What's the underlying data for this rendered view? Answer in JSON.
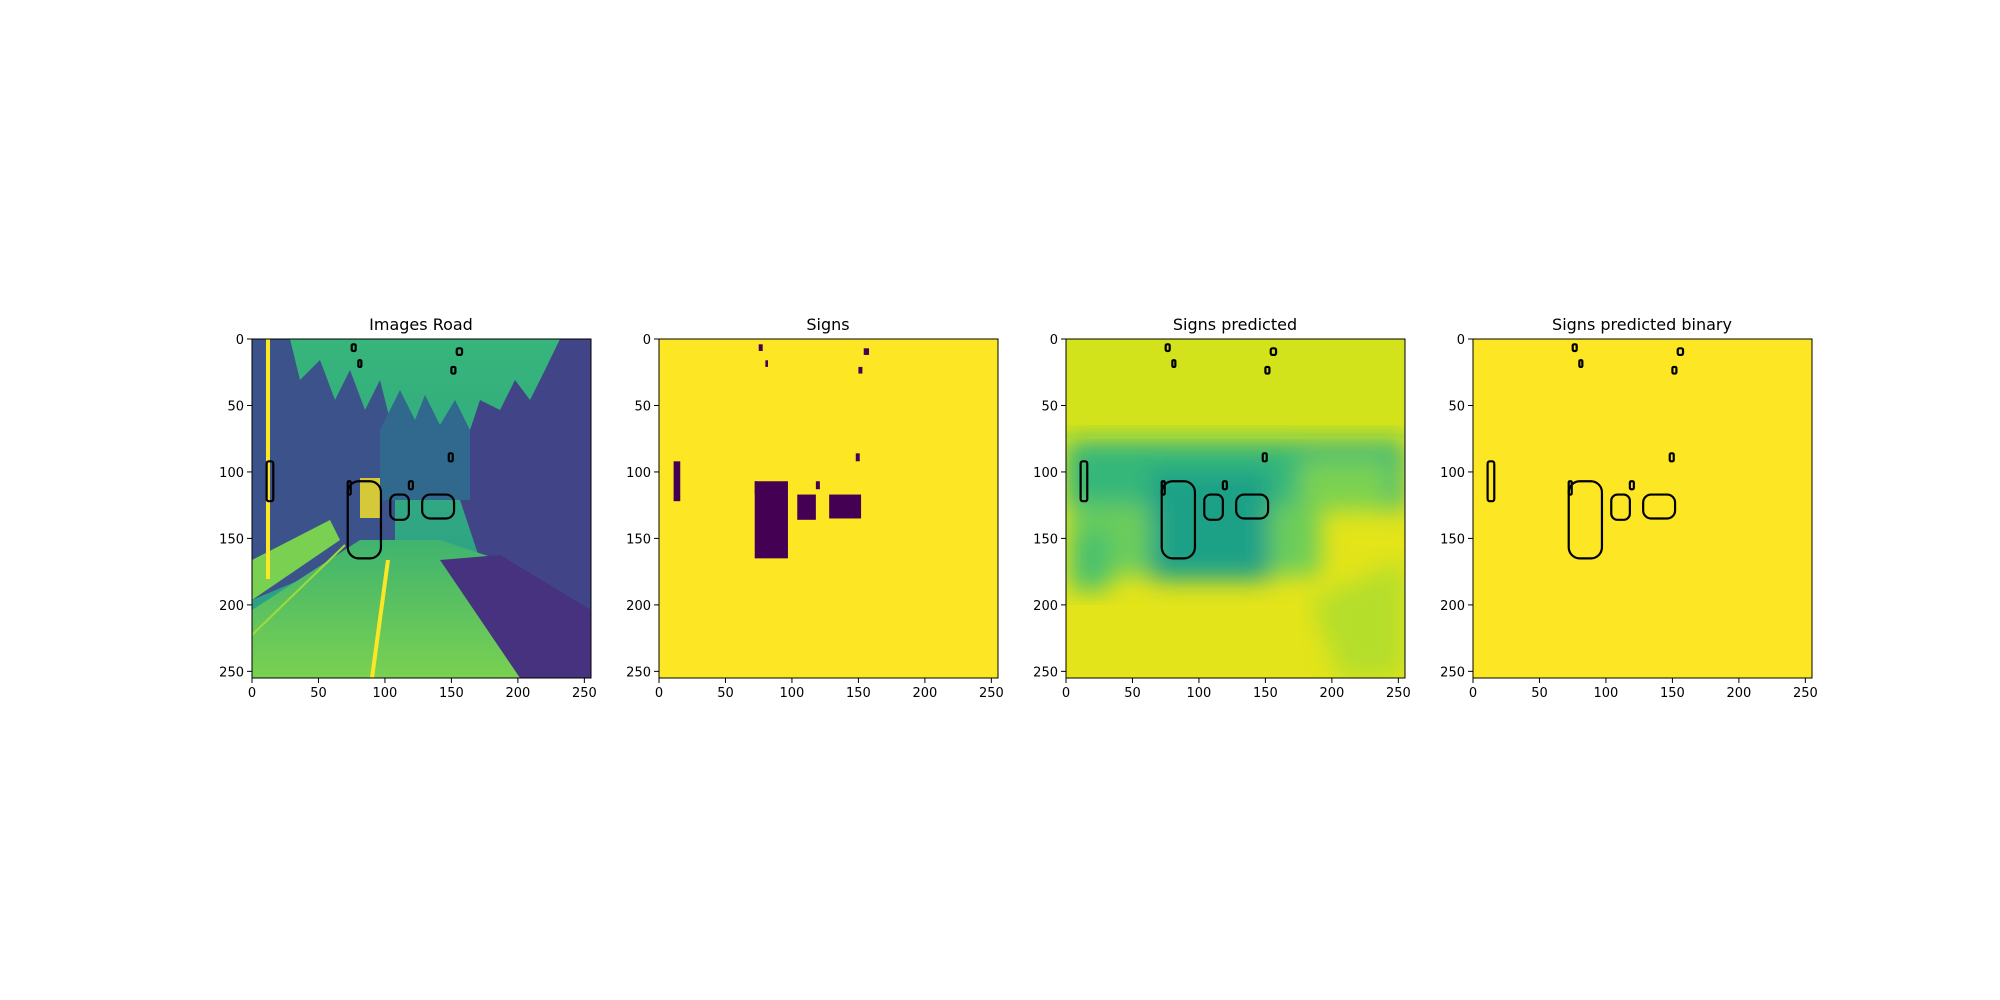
{
  "chart_data": [
    {
      "type": "heatmap",
      "title": "Images Road",
      "content": "image",
      "xlim": [
        0,
        255
      ],
      "ylim": [
        255,
        0
      ],
      "xticks": [
        0,
        50,
        100,
        150,
        200,
        250
      ],
      "yticks": [
        0,
        50,
        100,
        150,
        200,
        250
      ],
      "colormap": "viridis",
      "contours": "black"
    },
    {
      "type": "heatmap",
      "title": "Signs",
      "content": "mask",
      "xlim": [
        0,
        255
      ],
      "ylim": [
        255,
        0
      ],
      "xticks": [
        0,
        50,
        100,
        150,
        200,
        250
      ],
      "yticks": [
        0,
        50,
        100,
        150,
        200,
        250
      ],
      "colormap": "viridis",
      "contours": "none"
    },
    {
      "type": "heatmap",
      "title": "Signs predicted",
      "content": "prediction",
      "xlim": [
        0,
        255
      ],
      "ylim": [
        255,
        0
      ],
      "xticks": [
        0,
        50,
        100,
        150,
        200,
        250
      ],
      "yticks": [
        0,
        50,
        100,
        150,
        200,
        250
      ],
      "colormap": "viridis",
      "contours": "black"
    },
    {
      "type": "heatmap",
      "title": "Signs predicted binary",
      "content": "binary",
      "xlim": [
        0,
        255
      ],
      "ylim": [
        255,
        0
      ],
      "xticks": [
        0,
        50,
        100,
        150,
        200,
        250
      ],
      "yticks": [
        0,
        50,
        100,
        150,
        200,
        250
      ],
      "colormap": "viridis",
      "contours": "black"
    }
  ],
  "sign_regions": [
    {
      "x": [
        75,
        78
      ],
      "y": [
        4,
        9
      ]
    },
    {
      "x": [
        80,
        82
      ],
      "y": [
        16,
        21
      ]
    },
    {
      "x": [
        150,
        153
      ],
      "y": [
        21,
        26
      ]
    },
    {
      "x": [
        154,
        158
      ],
      "y": [
        7,
        12
      ]
    },
    {
      "x": [
        148,
        151
      ],
      "y": [
        86,
        92
      ]
    },
    {
      "x": [
        11,
        16
      ],
      "y": [
        92,
        122
      ]
    },
    {
      "x": [
        72,
        74
      ],
      "y": [
        107,
        117
      ]
    },
    {
      "x": [
        72,
        97
      ],
      "y": [
        107,
        165
      ]
    },
    {
      "x": [
        104,
        118
      ],
      "y": [
        117,
        136
      ]
    },
    {
      "x": [
        118,
        121
      ],
      "y": [
        107,
        113
      ]
    },
    {
      "x": [
        128,
        152
      ],
      "y": [
        117,
        135
      ]
    }
  ],
  "colors": {
    "viridis_dark": "#440154",
    "viridis_teal": "#2a9a8a",
    "viridis_green": "#52b873",
    "viridis_yellow": "#fde725",
    "contour": "#000000"
  }
}
